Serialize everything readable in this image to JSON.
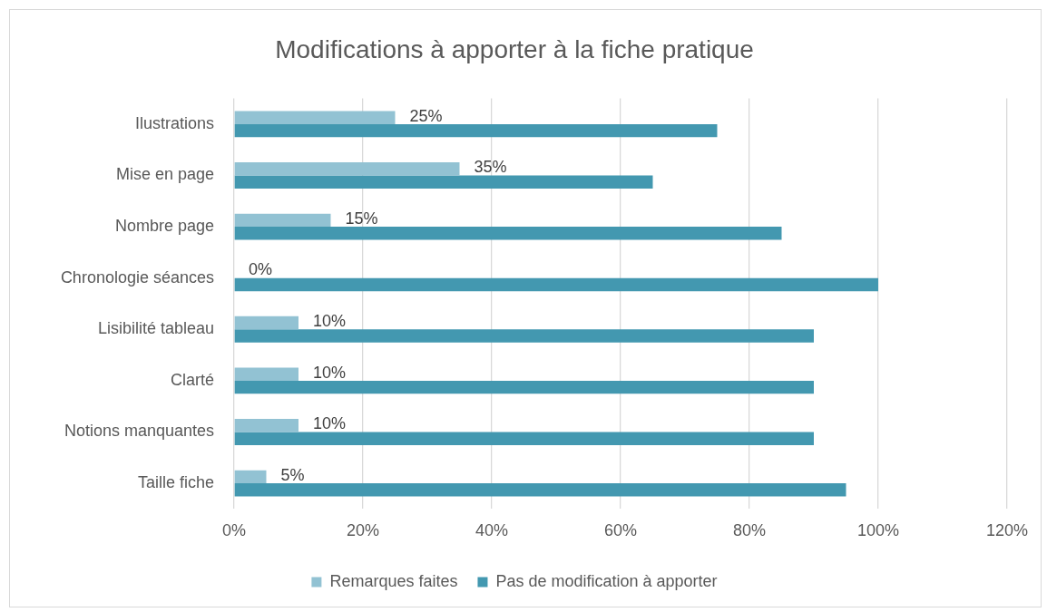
{
  "chart_data": {
    "type": "bar",
    "orientation": "horizontal",
    "title": "Modifications à apporter à la fiche pratique",
    "categories": [
      "Ilustrations",
      "Mise en page",
      "Nombre page",
      "Chronologie séances",
      "Lisibilité tableau",
      "Clarté",
      "Notions manquantes",
      "Taille fiche"
    ],
    "series": [
      {
        "name": "Remarques faites",
        "color": "#92c2d3",
        "values": [
          25,
          35,
          15,
          0,
          10,
          10,
          10,
          5
        ],
        "value_labels": [
          "25%",
          "35%",
          "15%",
          "0%",
          "10%",
          "10%",
          "10%",
          "5%"
        ]
      },
      {
        "name": "Pas de modification à apporter",
        "color": "#4398b0",
        "values": [
          75,
          65,
          85,
          100,
          90,
          90,
          90,
          95
        ]
      }
    ],
    "xlim": [
      0,
      120
    ],
    "xticks": [
      {
        "value": 0,
        "label": "0%"
      },
      {
        "value": 20,
        "label": "20%"
      },
      {
        "value": 40,
        "label": "40%"
      },
      {
        "value": 60,
        "label": "60%"
      },
      {
        "value": 80,
        "label": "80%"
      },
      {
        "value": 100,
        "label": "100%"
      },
      {
        "value": 120,
        "label": "120%"
      }
    ],
    "grid": "x",
    "legend": "bottom"
  }
}
